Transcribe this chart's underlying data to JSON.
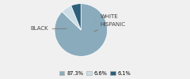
{
  "labels": [
    "BLACK",
    "WHITE",
    "HISPANIC"
  ],
  "values": [
    87.3,
    6.6,
    6.1
  ],
  "colors": [
    "#8aabbc",
    "#ccdde6",
    "#2e5f7a"
  ],
  "legend_labels": [
    "87.3%",
    "6.6%",
    "6.1%"
  ],
  "startangle": 90,
  "bg_color": "#f0f0f0"
}
